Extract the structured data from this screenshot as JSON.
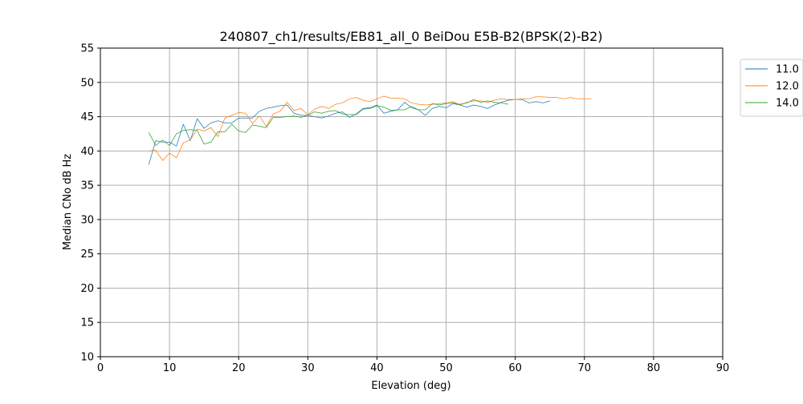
{
  "chart_data": {
    "type": "line",
    "title": "240807_ch1/results/EB81_all_0 BeiDou E5B-B2(BPSK(2)-B2)",
    "xlabel": "Elevation (deg)",
    "ylabel": "Median CNo dB Hz",
    "xlim": [
      0,
      90
    ],
    "ylim": [
      10,
      55
    ],
    "xticks": [
      0,
      10,
      20,
      30,
      40,
      50,
      60,
      70,
      80,
      90
    ],
    "yticks": [
      10,
      15,
      20,
      25,
      30,
      35,
      40,
      45,
      50,
      55
    ],
    "grid": true,
    "legend_position": "outside-top-right",
    "series": [
      {
        "name": "11.0",
        "color": "#1f77b4",
        "x": [
          7,
          8,
          9,
          10,
          11,
          12,
          13,
          14,
          15,
          16,
          17,
          18,
          19,
          20,
          21,
          22,
          23,
          24,
          25,
          26,
          27,
          28,
          29,
          30,
          31,
          32,
          33,
          34,
          35,
          36,
          37,
          38,
          39,
          40,
          41,
          42,
          43,
          44,
          45,
          46,
          47,
          48,
          49,
          50,
          51,
          52,
          53,
          54,
          55,
          56,
          57,
          58,
          59,
          60,
          61,
          62,
          63,
          64,
          65
        ],
        "y": [
          38.0,
          41.5,
          41.3,
          41.3,
          40.7,
          43.9,
          41.5,
          44.7,
          43.3,
          44.1,
          44.4,
          44.1,
          44.1,
          44.8,
          44.8,
          44.8,
          45.8,
          46.2,
          46.4,
          46.6,
          46.7,
          45.5,
          45.2,
          45.2,
          45.0,
          44.8,
          45.1,
          45.5,
          45.7,
          44.9,
          45.4,
          46.2,
          46.3,
          46.7,
          45.5,
          45.8,
          46.0,
          47.1,
          46.3,
          46.0,
          45.2,
          46.2,
          46.5,
          46.3,
          46.9,
          46.7,
          46.4,
          46.7,
          46.5,
          46.2,
          46.7,
          47.1,
          47.4,
          47.5,
          47.5,
          47.0,
          47.2,
          47.0,
          47.3
        ]
      },
      {
        "name": "12.0",
        "color": "#ff7f0e",
        "x": [
          7,
          8,
          9,
          10,
          11,
          12,
          13,
          14,
          15,
          16,
          17,
          18,
          19,
          20,
          21,
          22,
          23,
          24,
          25,
          26,
          27,
          28,
          29,
          30,
          31,
          32,
          33,
          34,
          35,
          36,
          37,
          38,
          39,
          40,
          41,
          42,
          43,
          44,
          45,
          46,
          47,
          48,
          49,
          50,
          51,
          52,
          53,
          54,
          55,
          56,
          57,
          58,
          59,
          60,
          61,
          62,
          63,
          64,
          65,
          66,
          67,
          68,
          69,
          70,
          71
        ],
        "y": [
          40.0,
          40.1,
          38.6,
          39.7,
          39.0,
          41.2,
          41.6,
          43.2,
          42.9,
          43.4,
          42.1,
          44.8,
          45.2,
          45.6,
          45.5,
          44.0,
          45.1,
          43.6,
          45.4,
          45.8,
          47.1,
          45.9,
          46.2,
          45.3,
          46.1,
          46.5,
          46.2,
          46.8,
          47.0,
          47.6,
          47.8,
          47.4,
          47.2,
          47.6,
          48.0,
          47.7,
          47.7,
          47.6,
          47.0,
          46.8,
          46.7,
          46.8,
          46.9,
          47.0,
          47.2,
          46.7,
          47.1,
          47.3,
          47.3,
          47.1,
          47.4,
          47.6,
          47.5,
          47.5,
          47.6,
          47.6,
          47.9,
          47.9,
          47.8,
          47.8,
          47.6,
          47.8,
          47.6,
          47.6,
          47.6
        ]
      },
      {
        "name": "14.0",
        "color": "#2ca02c",
        "x": [
          7,
          8,
          9,
          10,
          11,
          12,
          13,
          14,
          15,
          16,
          17,
          18,
          19,
          20,
          21,
          22,
          23,
          24,
          25,
          26,
          27,
          28,
          29,
          30,
          31,
          32,
          33,
          34,
          35,
          36,
          37,
          38,
          39,
          40,
          41,
          42,
          43,
          44,
          45,
          46,
          47,
          48,
          49,
          50,
          51,
          52,
          53,
          54,
          55,
          56,
          57,
          58,
          59
        ],
        "y": [
          42.7,
          40.8,
          41.6,
          40.8,
          42.5,
          43.0,
          43.1,
          43.0,
          41.0,
          41.3,
          42.8,
          42.8,
          43.9,
          42.9,
          42.7,
          43.8,
          43.6,
          43.4,
          44.9,
          44.9,
          45.0,
          45.1,
          44.9,
          45.2,
          45.7,
          45.5,
          45.8,
          45.9,
          45.4,
          45.3,
          45.3,
          46.1,
          46.2,
          46.6,
          46.4,
          45.9,
          46.0,
          46.0,
          46.5,
          46.0,
          46.0,
          46.9,
          46.7,
          46.9,
          47.0,
          46.8,
          47.0,
          47.5,
          47.1,
          47.3,
          47.1,
          47.0,
          46.8
        ]
      }
    ]
  }
}
